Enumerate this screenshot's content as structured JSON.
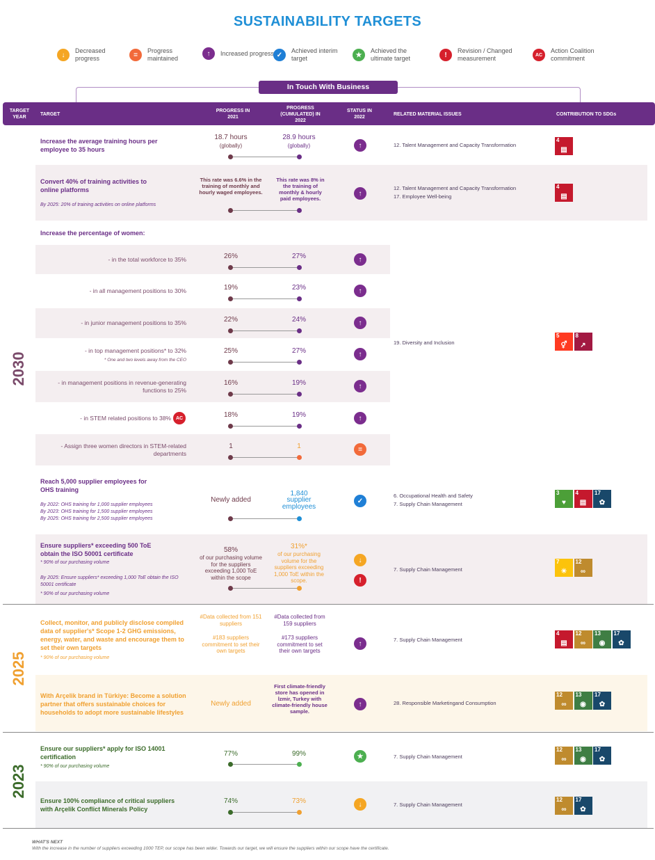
{
  "title": "SUSTAINABILITY TARGETS",
  "legend": [
    {
      "icon": "arrow-down",
      "glyph": "↓",
      "color": "#f5a623",
      "label": "Decreased progress"
    },
    {
      "icon": "equals",
      "glyph": "=",
      "color": "#f26a3a",
      "label": "Progress maintained"
    },
    {
      "icon": "arrow-up",
      "glyph": "↑",
      "color": "#7b2d8e",
      "label": "Increased progress"
    },
    {
      "icon": "check",
      "glyph": "✓",
      "color": "#1f7fd6",
      "label": "Achieved interim target"
    },
    {
      "icon": "star",
      "glyph": "★",
      "color": "#4caf50",
      "label": "Achieved the ultimate target"
    },
    {
      "icon": "exclamation",
      "glyph": "!",
      "color": "#d6202c",
      "label": "Revision / Changed measurement"
    },
    {
      "icon": "ac",
      "glyph": "AC",
      "color": "#d6202c",
      "label": "Action Coalition commitment"
    }
  ],
  "section_label": "In Touch With Business",
  "header": {
    "target_year": "TARGET YEAR",
    "target": "TARGET",
    "progress_2021": "PROGRESS IN 2021",
    "progress_2022": "PROGRESS (CUMULATED) IN 2022",
    "status": "STATUS IN 2022",
    "material": "RELATED MATERIAL ISSUES",
    "sdgs": "CONTRIBUTION TO SDGs"
  },
  "years": {
    "y2030": "2030",
    "y2025": "2025",
    "y2023": "2023"
  },
  "rows": {
    "training": {
      "target": "Increase the average training hours per employee to 35 hours",
      "p2021": "18.7 hours",
      "p2021b": "(globally)",
      "p2022": "28.9 hours",
      "p2022b": "(globally)",
      "material": "12. Talent Management and Capacity Transformation"
    },
    "online": {
      "target": "Convert 40% of training activities to online platforms",
      "sub": "By 2025: 20% of training activities on online platforms",
      "p2021": "This rate was 6.6% in the training of monthly and hourly waged employees.",
      "p2022": "This rate was 8% in the training of monthly & hourly paid employees.",
      "material1": "12. Talent Management and Capacity Transformation",
      "material2": "17. Employee Well-being"
    },
    "women": {
      "heading": "Increase the percentage of women:",
      "material": "19. Diversity and Inclusion",
      "items": [
        {
          "label": "- in the total workforce to 35%",
          "p2021": "26%",
          "p2022": "27%"
        },
        {
          "label": "- in all management positions to 30%",
          "p2021": "19%",
          "p2022": "23%"
        },
        {
          "label": "- in junior management positions to 35%",
          "p2021": "22%",
          "p2022": "24%"
        },
        {
          "label": "- in top management positions* to 32%",
          "note": "* One and two levels away from the CEO",
          "p2021": "25%",
          "p2022": "27%"
        },
        {
          "label": "- in management positions in revenue-generating functions to 25%",
          "p2021": "16%",
          "p2022": "19%"
        },
        {
          "label": "- in STEM related positions to 38%",
          "p2021": "18%",
          "p2022": "19%"
        },
        {
          "label": "- Assign three women directors in STEM-related departments",
          "p2021": "1",
          "p2022": "1"
        }
      ]
    },
    "ohs": {
      "target": "Reach 5,000 supplier employees for OHS training",
      "sub1": "By 2022: OHS training for 1,000 supplier employees",
      "sub2": "By 2023: OHS training for 1,500 supplier employees",
      "sub3": "By 2025: OHS training for 2,500 supplier employees",
      "p2021": "Newly added",
      "p2022a": "1,840",
      "p2022b": "supplier employees",
      "material1": "6. Occupational Health and Safety",
      "material2": "7. Supply Chain Management"
    },
    "iso50001": {
      "target": "Ensure suppliers* exceeding 500 ToE obtain the ISO 50001 certificate",
      "sub1": "* 90% of our purchasing volume",
      "sub2": "By 2025: Ensure suppliers* exceeding 1,000 ToE obtain the ISO 50001 certificate",
      "sub3": "* 90% of our purchasing volume",
      "p2021a": "58%",
      "p2021b": "of our purchasing volume for the suppliers exceeding 1,000 ToE within the scope",
      "p2022a": "31%*",
      "p2022b": "of our purchasing volume for the suppliers exceeding 1,000 ToE within the scope.",
      "material": "7. Supply Chain Management"
    },
    "ghg": {
      "target": "Collect, monitor, and publicly disclose compiled data of supplier's* Scope 1-2 GHG emissions, energy, water, and waste and encourage them to set their own targets",
      "sub": "* 90% of our purchasing volume",
      "p2021a": "#Data collected from 151 suppliers",
      "p2021b": "#183 suppliers commitment to set their own targets",
      "p2022a": "#Data collected from 159 suppliers",
      "p2022b": "#173 suppliers commitment to set their own targets",
      "material": "7. Supply Chain Management"
    },
    "arcelik": {
      "target": "With Arçelik brand in Türkiye: Become a solution partner that offers sustainable choices for households to adopt more sustainable lifestyles",
      "p2021": "Newly added",
      "p2022": "First climate-friendly store has opened in İzmir, Turkey with climate-friendly house sample.",
      "material": "28. Responsible Marketingand Consumption"
    },
    "iso14001": {
      "target": "Ensure our suppliers* apply for ISO 14001 certification",
      "sub": "* 90% of our purchasing volume",
      "p2021": "77%",
      "p2022": "99%",
      "material": "7. Supply Chain Management"
    },
    "conflict": {
      "target": "Ensure 100% compliance of critical suppliers with Arçelik Conflict Minerals Policy",
      "p2021": "74%",
      "p2022": "73%",
      "material": "7. Supply Chain Management"
    }
  },
  "sdg_colors": {
    "3": "#4c9f38",
    "4": "#c5192d",
    "5": "#ff3a21",
    "7": "#fcc30b",
    "8": "#a21942",
    "12": "#bf8b2e",
    "13": "#3f7e44",
    "17": "#19486a"
  },
  "sdg_labels": {
    "3": "GOOD HEALTH AND WELL-BEING",
    "4": "QUALITY EDUCATION",
    "5": "GENDER EQUALITY",
    "7": "AFFORDABLE AND CLEAN ENERGY",
    "8": "DECENT WORK AND ECONOMIC GROWTH",
    "12": "RESPONSIBLE CONSUMPTION AND PRODUCTION",
    "13": "CLIMATE ACTION",
    "17": "PARTNERSHIPS FOR THE GOALS"
  },
  "footer": {
    "title": "WHAT'S NEXT",
    "text": "With the increase in the number of suppliers exceeding 1000 TEP, our scope has been wider. Towards our target, we will ensure the suppliers within our scope have the certificate."
  }
}
